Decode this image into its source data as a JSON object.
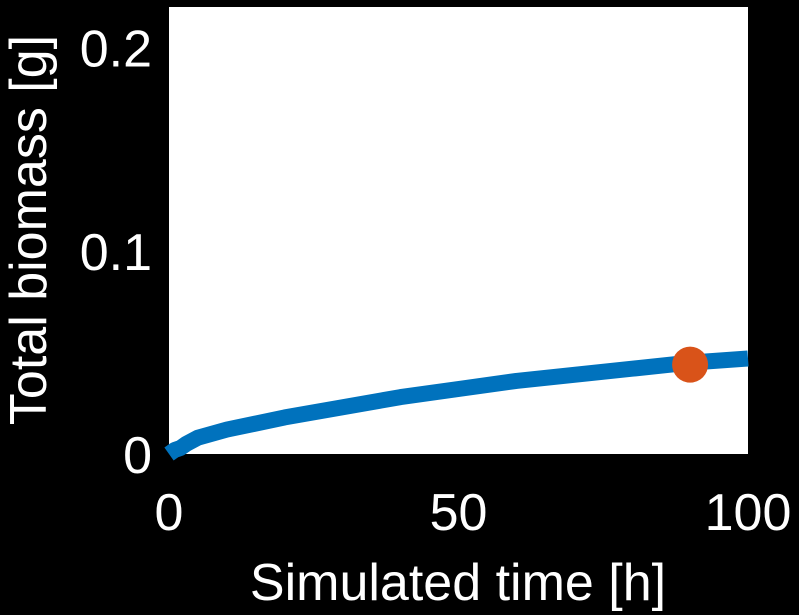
{
  "chart_data": {
    "type": "line",
    "title": "",
    "xlabel": "Simulated time [h]",
    "ylabel": "Total biomass [g]",
    "xlim": [
      0,
      100
    ],
    "ylim": [
      0,
      0.22
    ],
    "xticks": [
      0,
      50,
      100
    ],
    "xtick_labels": [
      "0",
      "50",
      "100"
    ],
    "yticks": [
      0,
      0.1,
      0.2
    ],
    "ytick_labels": [
      "0",
      "0.1",
      "0.2"
    ],
    "grid": false,
    "background_color": "#000000",
    "plot_area_color": "#ffffff",
    "series": [
      {
        "color": "#0072BD",
        "x": [
          0,
          1,
          2,
          3,
          5,
          10,
          20,
          30,
          40,
          50,
          60,
          70,
          80,
          90,
          100
        ],
        "y": [
          0.0,
          0.002,
          0.003,
          0.005,
          0.008,
          0.012,
          0.018,
          0.023,
          0.028,
          0.032,
          0.036,
          0.039,
          0.042,
          0.045,
          0.047
        ]
      }
    ],
    "highlight_point": {
      "x": 90,
      "y": 0.044,
      "color": "#D95319"
    }
  }
}
